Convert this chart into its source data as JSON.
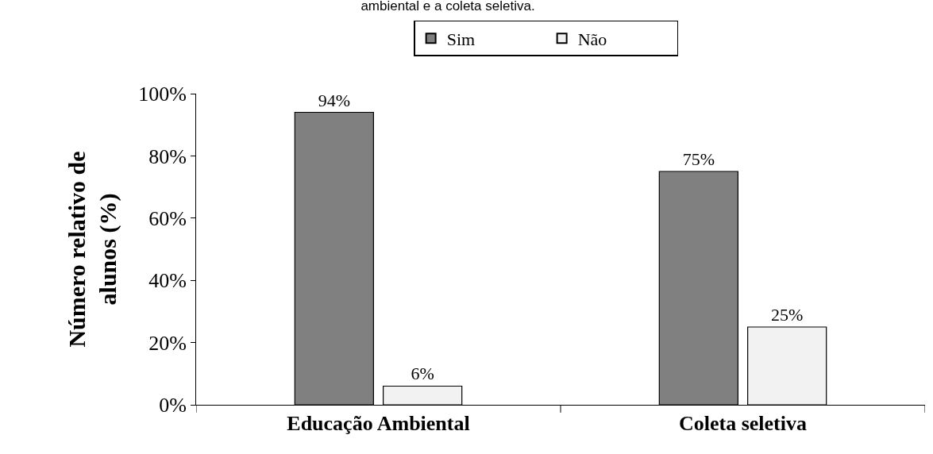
{
  "chart_data": {
    "type": "bar",
    "title": "ambiental e a coleta seletiva.",
    "ylabel": "Número relativo de\nalunos (%)",
    "categories": [
      "Educação Ambiental",
      "Coleta seletiva"
    ],
    "series": [
      {
        "name": "Sim",
        "color": "#808080",
        "values": [
          94,
          75
        ],
        "value_labels": [
          "94%",
          "75%"
        ]
      },
      {
        "name": "Não",
        "color": "#f2f2f2",
        "values": [
          6,
          25
        ],
        "value_labels": [
          "6%",
          "25%"
        ]
      }
    ],
    "ylim": [
      0,
      100
    ],
    "yticks": [
      {
        "value": 0,
        "label": "0%"
      },
      {
        "value": 20,
        "label": "20%"
      },
      {
        "value": 40,
        "label": "40%"
      },
      {
        "value": 60,
        "label": "60%"
      },
      {
        "value": 80,
        "label": "80%"
      },
      {
        "value": 100,
        "label": "100%"
      }
    ],
    "legend": "top"
  }
}
